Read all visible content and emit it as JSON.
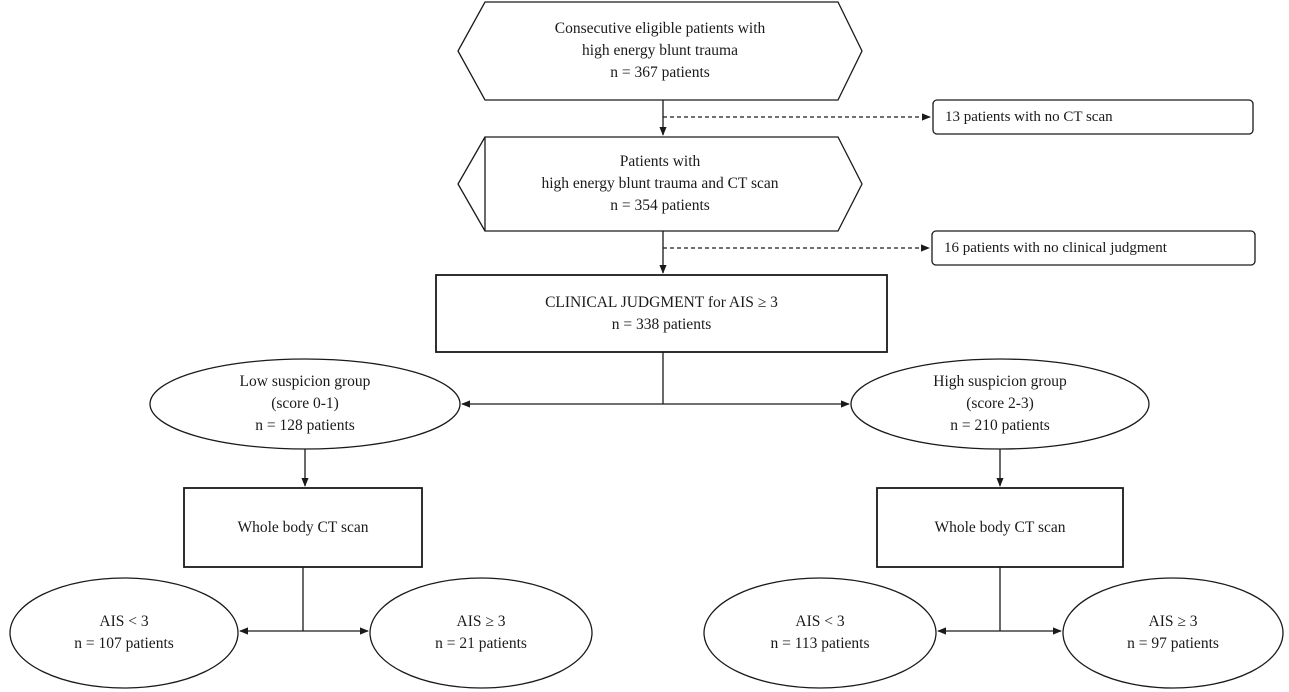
{
  "nodes": {
    "eligible": {
      "line1": "Consecutive eligible patients with",
      "line2": "high energy blunt trauma",
      "line3": "n = 367 patients"
    },
    "excluded_no_ct": {
      "text": "13 patients with no CT scan"
    },
    "with_ct": {
      "line1": "Patients with",
      "line2": "high energy blunt trauma and CT scan",
      "line3": "n = 354 patients"
    },
    "excluded_no_judgment": {
      "text": "16 patients with no clinical judgment"
    },
    "clinical_judgment": {
      "line1": "CLINICAL JUDGMENT for AIS ≥ 3",
      "line2": "n = 338 patients"
    },
    "low_suspicion": {
      "line1": "Low suspicion group",
      "line2": "(score 0-1)",
      "line3": "n = 128 patients"
    },
    "high_suspicion": {
      "line1": "High suspicion group",
      "line2": "(score 2-3)",
      "line3": "n = 210 patients"
    },
    "ct_low": {
      "text": "Whole body CT scan"
    },
    "ct_high": {
      "text": "Whole body CT scan"
    },
    "low_ais_lt3": {
      "line1": "AIS < 3",
      "line2": "n = 107 patients"
    },
    "low_ais_ge3": {
      "line1": "AIS ≥ 3",
      "line2": "n = 21 patients"
    },
    "high_ais_lt3": {
      "line1": "AIS < 3",
      "line2": "n = 113 patients"
    },
    "high_ais_ge3": {
      "line1": "AIS ≥ 3",
      "line2": "n = 97 patients"
    }
  }
}
